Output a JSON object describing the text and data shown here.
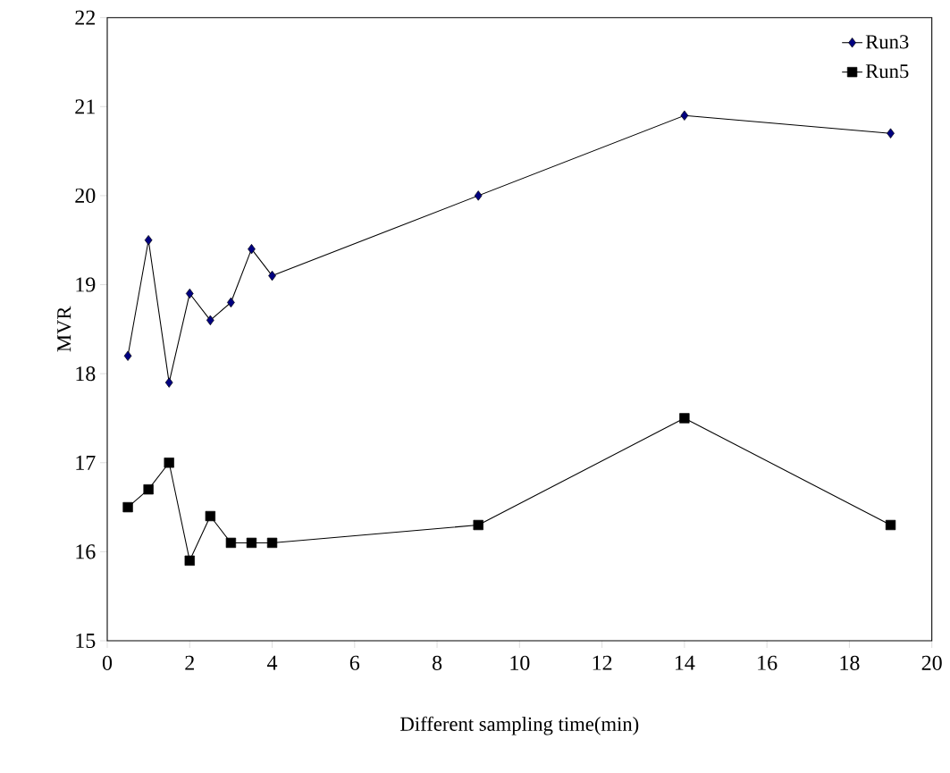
{
  "chart_data": {
    "type": "line",
    "xlabel": "Different sampling time(min)",
    "ylabel": "MVR",
    "x": [
      0.5,
      1,
      1.5,
      2,
      2.5,
      3,
      3.5,
      4,
      9,
      14,
      19
    ],
    "series": [
      {
        "name": "Run3",
        "color": "#000080",
        "marker": "diamond",
        "values": [
          18.2,
          19.5,
          17.9,
          18.9,
          18.6,
          18.8,
          19.4,
          19.1,
          20.0,
          20.9,
          20.7
        ]
      },
      {
        "name": "Run5",
        "color": "#000000",
        "marker": "square",
        "values": [
          16.5,
          16.7,
          17.0,
          15.9,
          16.4,
          16.1,
          16.1,
          16.1,
          16.3,
          17.5,
          16.3
        ]
      }
    ],
    "xlim": [
      0,
      20
    ],
    "xticks": [
      0,
      2,
      4,
      6,
      8,
      10,
      12,
      14,
      16,
      18,
      20
    ],
    "ylim": [
      15,
      22
    ],
    "yticks": [
      15,
      16,
      17,
      18,
      19,
      20,
      21,
      22
    ],
    "grid": false,
    "legend": "top right",
    "line_style": "solid"
  }
}
